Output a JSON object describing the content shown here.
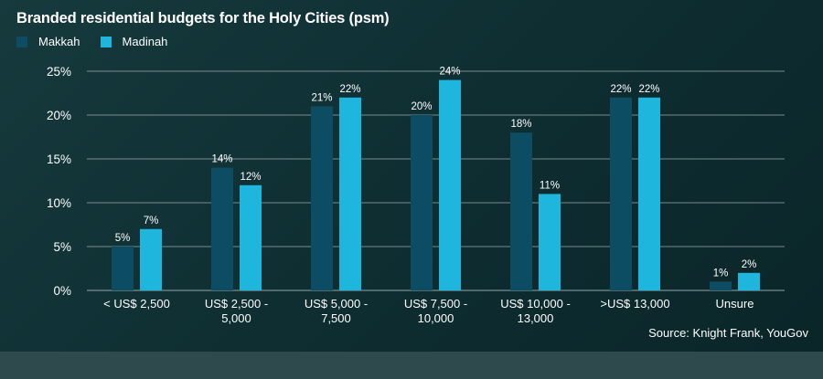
{
  "chart_data": {
    "type": "bar",
    "title": "Branded residential budgets for the Holy Cities (psm)",
    "categories": [
      [
        "< US$ 2,500"
      ],
      [
        "US$ 2,500 -",
        "5,000"
      ],
      [
        "US$ 5,000 -",
        "7,500"
      ],
      [
        "US$ 7,500 -",
        "10,000"
      ],
      [
        "US$ 10,000 -",
        "13,000"
      ],
      [
        ">US$ 13,000"
      ],
      [
        "Unsure"
      ]
    ],
    "series": [
      {
        "name": "Makkah",
        "color": "#0d4d63",
        "values": [
          5,
          14,
          21,
          20,
          18,
          22,
          1
        ],
        "labels": [
          "5%",
          "14%",
          "21%",
          "20%",
          "18%",
          "22%",
          "1%"
        ]
      },
      {
        "name": "Madinah",
        "color": "#1eb6dd",
        "values": [
          7,
          12,
          22,
          24,
          11,
          22,
          2
        ],
        "labels": [
          "7%",
          "12%",
          "22%",
          "24%",
          "11%",
          "22%",
          "2%"
        ]
      }
    ],
    "yticks": [
      0,
      5,
      10,
      15,
      20,
      25
    ],
    "ytick_labels": [
      "0%",
      "5%",
      "10%",
      "15%",
      "20%",
      "25%"
    ],
    "ylim": [
      0,
      25
    ],
    "grid": true,
    "legend": "top-left"
  },
  "source": "Source: Knight Frank, YouGov"
}
